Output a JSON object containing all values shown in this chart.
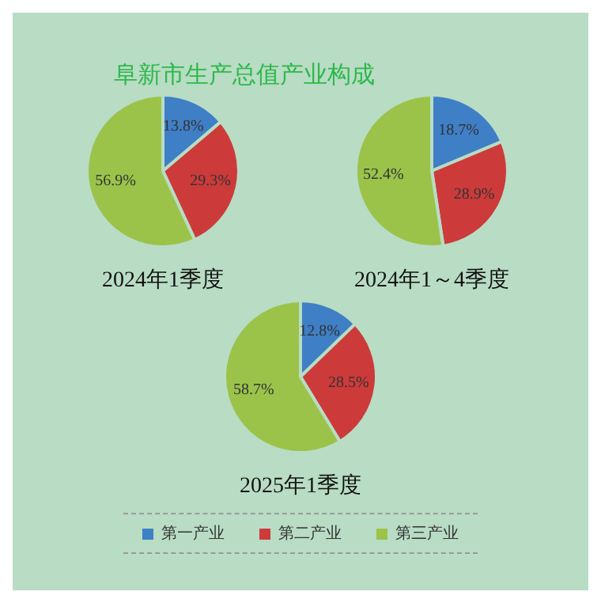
{
  "chart_data": [
    {
      "type": "pie",
      "title": "阜新市生产总值产业构成",
      "xlabel": "2024年1季度",
      "values": [
        13.8,
        29.3,
        56.9
      ],
      "colors": [
        "#3f7fc6",
        "#cc3b3a",
        "#9bc34a"
      ],
      "value_labels": [
        "13.8%",
        "29.3%",
        "56.9%"
      ]
    },
    {
      "type": "pie",
      "xlabel": "2024年1～4季度",
      "values": [
        18.7,
        28.9,
        52.4
      ],
      "colors": [
        "#3f7fc6",
        "#cc3b3a",
        "#9bc34a"
      ],
      "value_labels": [
        "18.7%",
        "28.9%",
        "52.4%"
      ]
    },
    {
      "type": "pie",
      "xlabel": "2025年1季度",
      "categories": [
        "第一产业",
        "第二产业",
        "第三产业"
      ],
      "values": [
        12.8,
        28.5,
        58.7
      ],
      "colors": [
        "#3f7fc6",
        "#cc3b3a",
        "#9bc34a"
      ],
      "value_labels": [
        "12.8%",
        "28.5%",
        "58.7%"
      ],
      "legend": "bottom"
    }
  ]
}
